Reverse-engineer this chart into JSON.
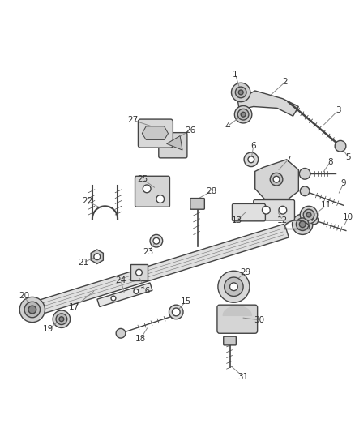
{
  "background_color": "#ffffff",
  "line_color": "#444444",
  "text_color": "#333333",
  "fig_width": 4.38,
  "fig_height": 5.33,
  "dpi": 100
}
